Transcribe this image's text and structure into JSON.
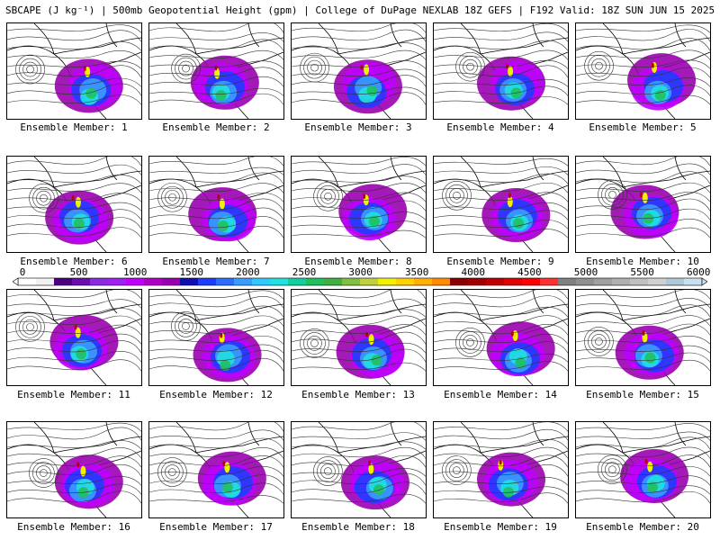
{
  "title": "SBCAPE (J kg⁻¹) | 500mb Geopotential Height (gpm) | College of DuPage NEXLAB 18Z GEFS | F192 Valid: 18Z SUN JUN 15 2025",
  "members": [
    "Ensemble Member: 1",
    "Ensemble Member: 2",
    "Ensemble Member: 3",
    "Ensemble Member: 4",
    "Ensemble Member: 5",
    "Ensemble Member: 6",
    "Ensemble Member: 7",
    "Ensemble Member: 8",
    "Ensemble Member: 9",
    "Ensemble Member: 10",
    "Ensemble Member: 11",
    "Ensemble Member: 12",
    "Ensemble Member: 13",
    "Ensemble Member: 14",
    "Ensemble Member: 15",
    "Ensemble Member: 16",
    "Ensemble Member: 17",
    "Ensemble Member: 18",
    "Ensemble Member: 19",
    "Ensemble Member: 20"
  ],
  "colorbar": {
    "ticks": [
      "0",
      "500",
      "1000",
      "1500",
      "2000",
      "2500",
      "3000",
      "3500",
      "4000",
      "4500",
      "5000",
      "5500",
      "6000"
    ],
    "colors": [
      "#ffffff",
      "#f2f2f2",
      "#4b0082",
      "#6a0dad",
      "#8a2be2",
      "#a020f0",
      "#c000ff",
      "#b000c8",
      "#9a00b0",
      "#1010b0",
      "#1e3cff",
      "#2c6cff",
      "#3a9cff",
      "#30c8ff",
      "#20e0e0",
      "#10d0a0",
      "#20c060",
      "#40b040",
      "#80c040",
      "#c0d040",
      "#f0f000",
      "#ffd000",
      "#ffb000",
      "#ff8c00",
      "#8b0000",
      "#a00000",
      "#c00000",
      "#e00000",
      "#ff0000",
      "#ff3030",
      "#808080",
      "#909090",
      "#a0a0a0",
      "#b0b0b0",
      "#c0c0c0",
      "#d0d0d0",
      "#b0c8d8",
      "#c8e0f0"
    ]
  }
}
